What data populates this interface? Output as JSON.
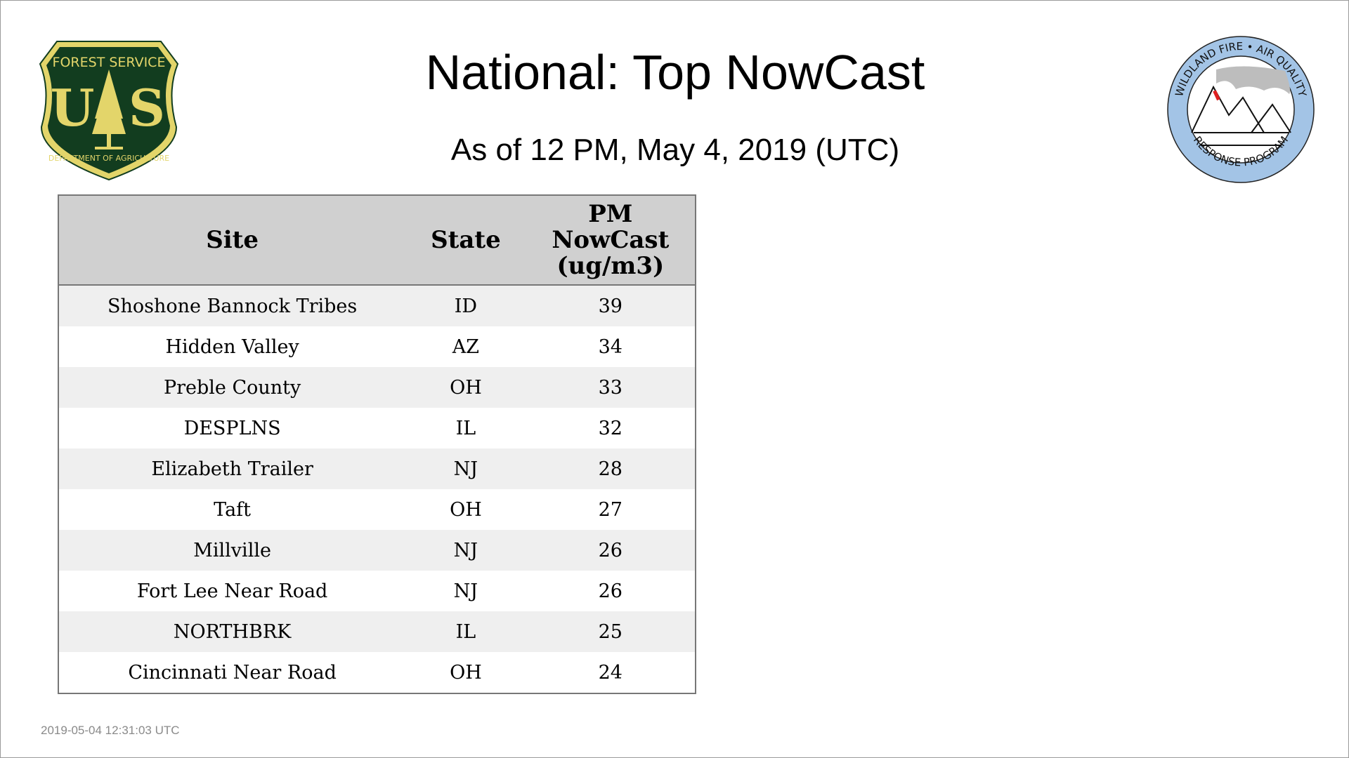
{
  "header": {
    "title": "National: Top NowCast",
    "subtitle": "As of 12 PM, May  4, 2019 (UTC)"
  },
  "logos": {
    "left": {
      "name": "usfs-shield-logo",
      "top_text": "FOREST SERVICE",
      "letters": "U S",
      "bottom_text": "DEPARTMENT OF AGRICULTURE",
      "colors": {
        "green": "#123d1f",
        "gold": "#e3d56a"
      }
    },
    "right": {
      "name": "wildland-fire-air-quality-logo",
      "top_text": "WILDLAND FIRE • AIR QUALITY",
      "bottom_text": "RESPONSE PROGRAM",
      "colors": {
        "ring": "#a3c4e6",
        "smoke": "#bdbdbd",
        "flame": "#e02020"
      }
    }
  },
  "table": {
    "columns": [
      "Site",
      "State",
      "PM NowCast (ug/m3)"
    ],
    "column_lines": [
      [
        "Site"
      ],
      [
        "State"
      ],
      [
        "PM",
        "NowCast",
        "(ug/m3)"
      ]
    ],
    "rows": [
      {
        "site": "Shoshone Bannock Tribes",
        "state": "ID",
        "value": "39"
      },
      {
        "site": "Hidden Valley",
        "state": "AZ",
        "value": "34"
      },
      {
        "site": "Preble County",
        "state": "OH",
        "value": "33"
      },
      {
        "site": "DESPLNS",
        "state": "IL",
        "value": "32"
      },
      {
        "site": "Elizabeth Trailer",
        "state": "NJ",
        "value": "28"
      },
      {
        "site": "Taft",
        "state": "OH",
        "value": "27"
      },
      {
        "site": "Millville",
        "state": "NJ",
        "value": "26"
      },
      {
        "site": "Fort Lee Near Road",
        "state": "NJ",
        "value": "26"
      },
      {
        "site": "NORTHBRK",
        "state": "IL",
        "value": "25"
      },
      {
        "site": "Cincinnati Near Road",
        "state": "OH",
        "value": "24"
      }
    ]
  },
  "footer": {
    "timestamp": "2019-05-04 12:31:03 UTC"
  }
}
